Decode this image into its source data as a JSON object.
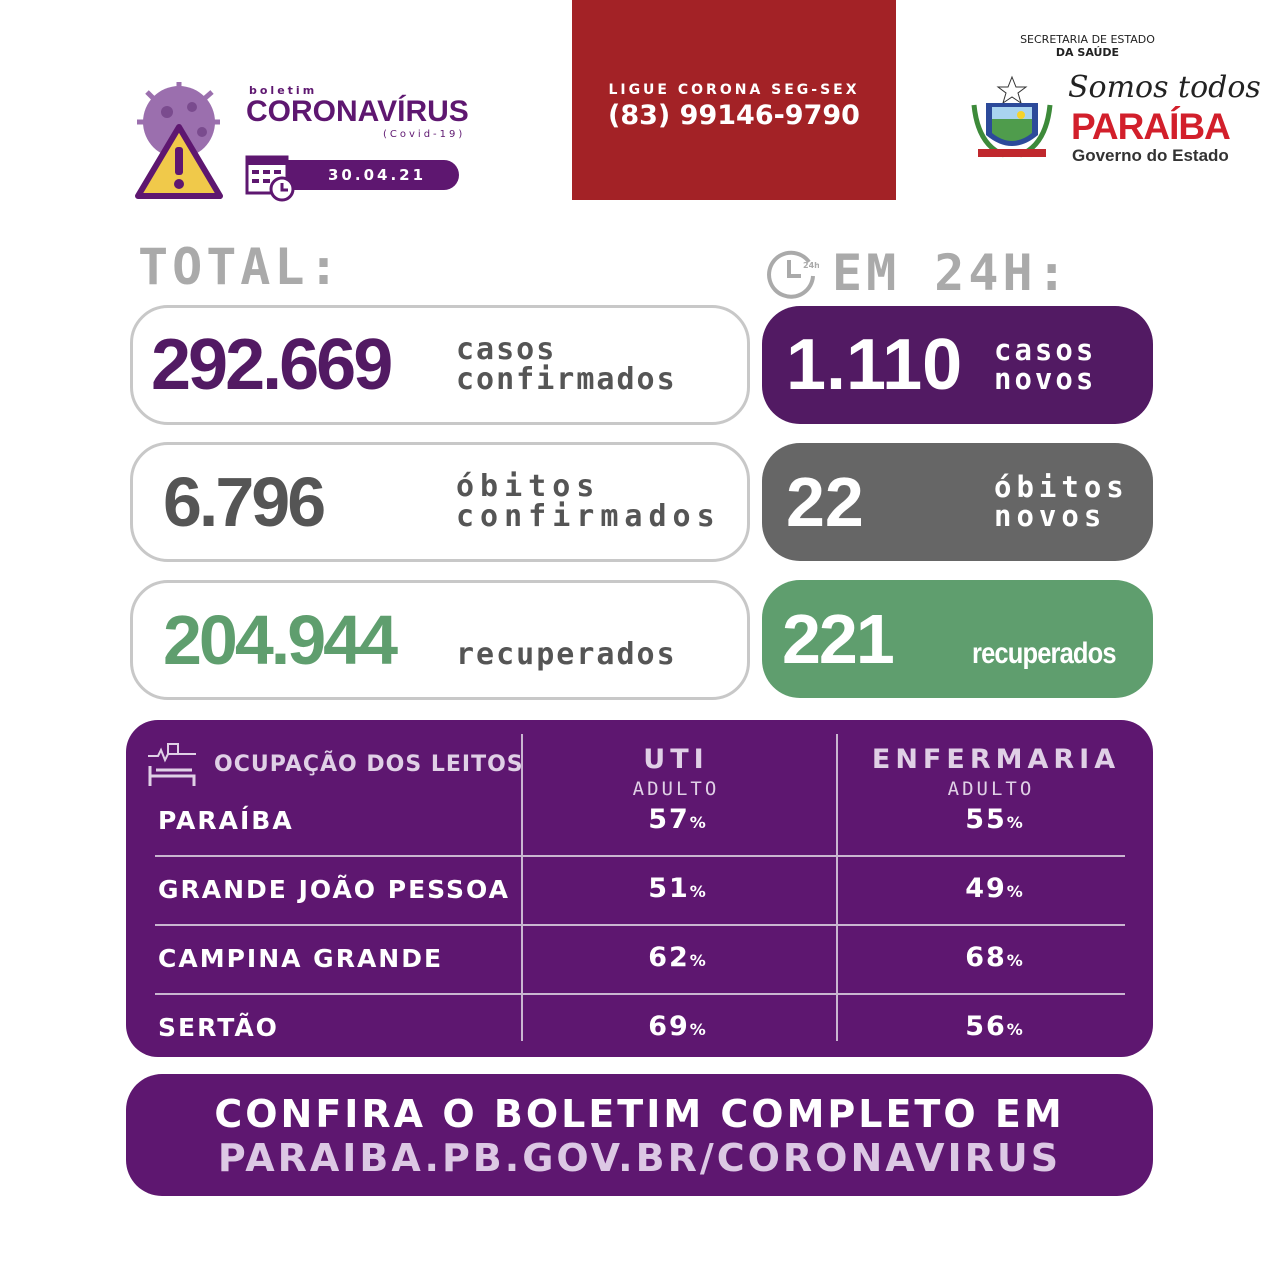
{
  "header": {
    "boletim": "boletim",
    "title": "CORONAVÍRUS",
    "subtitle": "(Covid-19)",
    "date": "30.04.21"
  },
  "hotline": {
    "label": "LIGUE CORONA SEG-SEX",
    "phone": "(83) 99146-9790"
  },
  "gov": {
    "line1": "SECRETARIA DE ESTADO",
    "line2": "DA SAÚDE",
    "slogan": "Somos todos",
    "state": "PARAÍBA",
    "gov": "Governo do Estado"
  },
  "total": {
    "heading": "TOTAL:",
    "cases": "292.669",
    "cases_l1": "casos",
    "cases_l2": "confirmados",
    "deaths": "6.796",
    "deaths_l1": "óbitos",
    "deaths_l2": "confirmados",
    "recovered": "204.944",
    "recovered_l": "recuperados"
  },
  "day": {
    "heading": "EM 24H:",
    "cases": "1.110",
    "cases_l1": "casos",
    "cases_l2": "novos",
    "deaths": "22",
    "deaths_l1": "óbitos",
    "deaths_l2": "novos",
    "recovered": "221",
    "recovered_l": "recuperados"
  },
  "beds": {
    "title": "OCUPAÇÃO DOS LEITOS",
    "uti": "UTI",
    "uti_sub": "ADULTO",
    "enf": "ENFERMARIA",
    "enf_sub": "ADULTO",
    "unit": "%",
    "rows": [
      {
        "name": "PARAÍBA",
        "uti": "57",
        "enf": "55"
      },
      {
        "name": "GRANDE JOÃO PESSOA",
        "uti": "51",
        "enf": "49"
      },
      {
        "name": "CAMPINA GRANDE",
        "uti": "62",
        "enf": "68"
      },
      {
        "name": "SERTÃO",
        "uti": "69",
        "enf": "56"
      }
    ]
  },
  "cta": {
    "line1": "CONFIRA O BOLETIM COMPLETO EM",
    "line2": "PARAIBA.PB.GOV.BR/CORONAVIRUS"
  },
  "colors": {
    "purple": "#5e1770",
    "dark_purple": "#521a63",
    "red": "#a32226",
    "gray": "#666666",
    "green": "#5f9e6e"
  }
}
